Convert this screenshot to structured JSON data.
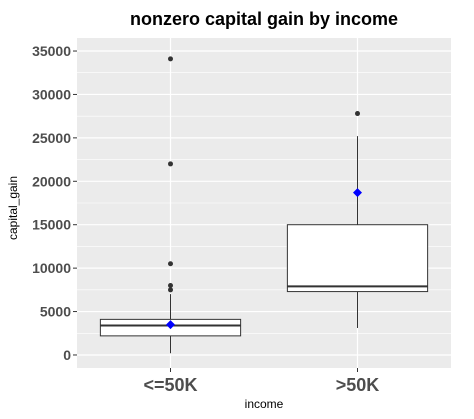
{
  "chart_data": {
    "type": "box",
    "title": "nonzero capital gain by income",
    "xlabel": "income",
    "ylabel": "capital_gain",
    "categories": [
      "<=50K",
      ">50K"
    ],
    "ylim": [
      -1500,
      36500
    ],
    "yticks": [
      0,
      5000,
      10000,
      15000,
      20000,
      25000,
      30000,
      35000
    ],
    "ytick_labels": [
      "0",
      "5000",
      "10000",
      "15000",
      "20000",
      "25000",
      "30000",
      "35000"
    ],
    "boxes": [
      {
        "category": "<=50K",
        "q1": 2200,
        "median": 3400,
        "q3": 4100,
        "whisker_low": 200,
        "whisker_high": 7000,
        "mean": 3500,
        "outliers": [
          7500,
          8000,
          10500,
          22000,
          34100
        ]
      },
      {
        "category": ">50K",
        "q1": 7300,
        "median": 7900,
        "q3": 15000,
        "whisker_low": 3100,
        "whisker_high": 25200,
        "mean": 18700,
        "outliers": [
          27800
        ]
      }
    ],
    "grid": true,
    "colors": {
      "panel": "#ebebeb",
      "grid_major": "#ffffff",
      "box_fill": "#ffffff",
      "box_line": "#333333",
      "mean_marker": "#0000ff",
      "outlier": "#333333"
    }
  }
}
